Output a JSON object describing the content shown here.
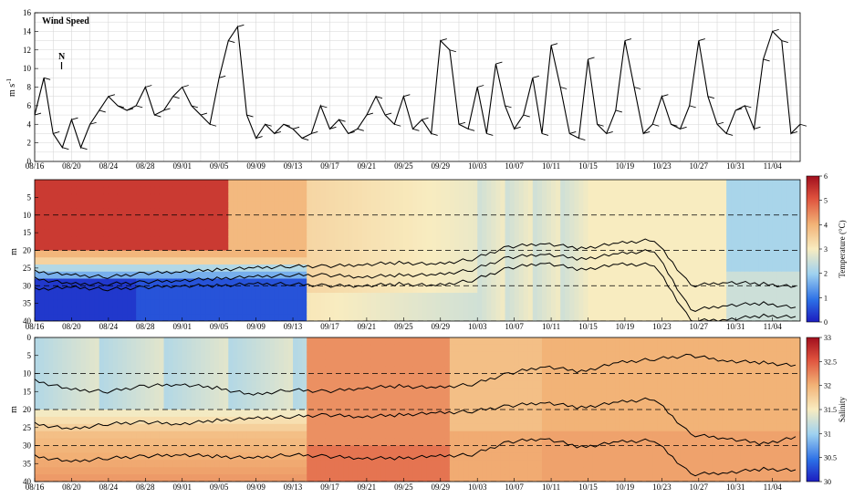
{
  "figure": {
    "x_tick_labels": [
      "08/16",
      "08/20",
      "08/24",
      "08/28",
      "09/01",
      "09/05",
      "09/09",
      "09/13",
      "09/17",
      "09/21",
      "09/25",
      "09/29",
      "10/03",
      "10/07",
      "10/11",
      "10/15",
      "10/19",
      "10/23",
      "10/27",
      "10/31",
      "11/04"
    ],
    "x_range_days": [
      0,
      83
    ]
  },
  "chart_data": [
    {
      "type": "line",
      "title": "Wind Speed",
      "ylabel": "m s",
      "ylabel_exponent": "-1",
      "ylim": [
        0,
        16
      ],
      "yticks": [
        "0",
        "2",
        "4",
        "6",
        "8",
        "10",
        "12",
        "14",
        "16"
      ],
      "north_arrow_label": "N",
      "grid": true,
      "series": [
        {
          "x": [
            "08/16",
            "08/17",
            "08/18",
            "08/19",
            "08/20",
            "08/21",
            "08/22",
            "08/23",
            "08/24",
            "08/25",
            "08/26",
            "08/27",
            "08/28",
            "08/29",
            "08/30",
            "08/31",
            "09/01",
            "09/02",
            "09/03",
            "09/04",
            "09/05",
            "09/06",
            "09/07",
            "09/08",
            "09/09",
            "09/10",
            "09/11",
            "09/12",
            "09/13",
            "09/14",
            "09/15",
            "09/16",
            "09/17",
            "09/18",
            "09/19",
            "09/20",
            "09/21",
            "09/22",
            "09/23",
            "09/24",
            "09/25",
            "09/26",
            "09/27",
            "09/28",
            "09/29",
            "09/30",
            "10/01",
            "10/02",
            "10/03",
            "10/04",
            "10/05",
            "10/06",
            "10/07",
            "10/08",
            "10/09",
            "10/10",
            "10/11",
            "10/12",
            "10/13",
            "10/14",
            "10/15",
            "10/16",
            "10/17",
            "10/18",
            "10/19",
            "10/20",
            "10/21",
            "10/22",
            "10/23",
            "10/24",
            "10/25",
            "10/26",
            "10/27",
            "10/28",
            "10/29",
            "10/30",
            "10/31",
            "11/01",
            "11/02",
            "11/03",
            "11/04",
            "11/05",
            "11/06",
            "11/07"
          ],
          "values": [
            5,
            9,
            3,
            1.5,
            4.5,
            1.5,
            4,
            5.5,
            7,
            6,
            5.5,
            6,
            8,
            5,
            5.5,
            7,
            8,
            6,
            5,
            4,
            9,
            13,
            14.5,
            5,
            2.5,
            4,
            3,
            4,
            3.5,
            2.5,
            3,
            6,
            3.5,
            4.5,
            3,
            3.5,
            5,
            7,
            5,
            4,
            7,
            3.5,
            4.5,
            3,
            13,
            12,
            4,
            3.5,
            8,
            3,
            10.5,
            6,
            3.5,
            5,
            9,
            3,
            12.5,
            8,
            3,
            2.5,
            11,
            4,
            3,
            5.5,
            13,
            8,
            3,
            4,
            7,
            4,
            3.5,
            6,
            13,
            7,
            4,
            3,
            5.5,
            6,
            3.5,
            11,
            14,
            13,
            3,
            4
          ]
        }
      ]
    },
    {
      "type": "heatmap",
      "ylabel": "m",
      "ylim": [
        0,
        40
      ],
      "yticks": [
        "5",
        "10",
        "15",
        "20",
        "25",
        "30",
        "35",
        "40"
      ],
      "colorbar_label": "Temperature (°C)",
      "colorbar_range": [
        0,
        6
      ],
      "colorbar_ticks": [
        "0",
        "1",
        "2",
        "3",
        "4",
        "5",
        "6"
      ],
      "dashed_depths": [
        10,
        20,
        30,
        40
      ],
      "isolines_depth": [
        [
          26,
          27,
          27.5,
          26.5,
          26,
          25.5,
          25,
          24.5,
          24.5,
          24,
          23.5,
          24,
          22.5,
          19,
          18,
          19.5,
          18,
          17,
          30,
          29,
          29.5,
          30.5
        ],
        [
          28,
          29.5,
          29.5,
          29,
          28.5,
          28,
          27.5,
          27,
          27,
          27.5,
          27,
          27,
          25.5,
          22,
          21,
          22.5,
          21,
          20,
          37,
          35.5,
          35,
          36.5
        ],
        [
          31,
          30.5,
          31,
          30.5,
          30,
          30,
          29.5,
          29.5,
          30,
          30,
          29.5,
          30,
          28.5,
          25,
          23.5,
          25.5,
          24,
          24,
          40,
          39.5,
          38.5,
          39
        ]
      ]
    },
    {
      "type": "heatmap",
      "ylabel": "m",
      "ylim": [
        0,
        40
      ],
      "yticks": [
        "0",
        "5",
        "10",
        "15",
        "20",
        "25",
        "30",
        "35",
        "40"
      ],
      "colorbar_label": "Salinity",
      "colorbar_range": [
        30,
        33
      ],
      "colorbar_ticks": [
        "30",
        "30.5",
        "31",
        "31.5",
        "32",
        "32.5",
        "33"
      ],
      "dashed_depths": [
        10,
        20,
        30,
        40
      ],
      "isolines_depth": [
        [
          12,
          14.5,
          15,
          13.5,
          13,
          14,
          16,
          14.5,
          15,
          14,
          13.5,
          14,
          13,
          10,
          8,
          9.5,
          7,
          6,
          5,
          6.5,
          7,
          8
        ],
        [
          24,
          25.5,
          24,
          23.5,
          24,
          23,
          22.5,
          22,
          21.5,
          22,
          21.5,
          21,
          20.5,
          19,
          18,
          19.5,
          18,
          17,
          27,
          28,
          29.5,
          27.5
        ],
        [
          33,
          34.5,
          33.5,
          33,
          32.5,
          33,
          33.5,
          32.5,
          33,
          33.5,
          33.5,
          33,
          32.5,
          29,
          28,
          30.5,
          29,
          28.5,
          38,
          37.5,
          36.5,
          37
        ]
      ]
    }
  ]
}
